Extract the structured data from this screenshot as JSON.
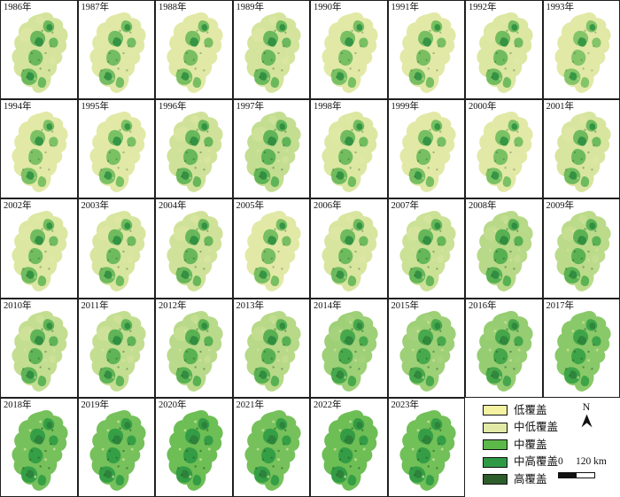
{
  "panels": [
    {
      "year": "1986年",
      "greenness": 0.42
    },
    {
      "year": "1987年",
      "greenness": 0.36
    },
    {
      "year": "1988年",
      "greenness": 0.33
    },
    {
      "year": "1989年",
      "greenness": 0.42
    },
    {
      "year": "1990年",
      "greenness": 0.32
    },
    {
      "year": "1991年",
      "greenness": 0.33
    },
    {
      "year": "1992年",
      "greenness": 0.38
    },
    {
      "year": "1993年",
      "greenness": 0.22
    },
    {
      "year": "1994年",
      "greenness": 0.28
    },
    {
      "year": "1995年",
      "greenness": 0.3
    },
    {
      "year": "1996年",
      "greenness": 0.44
    },
    {
      "year": "1997年",
      "greenness": 0.5
    },
    {
      "year": "1998年",
      "greenness": 0.38
    },
    {
      "year": "1999年",
      "greenness": 0.34
    },
    {
      "year": "2000年",
      "greenness": 0.3
    },
    {
      "year": "2001年",
      "greenness": 0.4
    },
    {
      "year": "2002年",
      "greenness": 0.38
    },
    {
      "year": "2003年",
      "greenness": 0.4
    },
    {
      "year": "2004年",
      "greenness": 0.44
    },
    {
      "year": "2005年",
      "greenness": 0.34
    },
    {
      "year": "2006年",
      "greenness": 0.4
    },
    {
      "year": "2007年",
      "greenness": 0.46
    },
    {
      "year": "2008年",
      "greenness": 0.56
    },
    {
      "year": "2009年",
      "greenness": 0.54
    },
    {
      "year": "2010年",
      "greenness": 0.5
    },
    {
      "year": "2011年",
      "greenness": 0.5
    },
    {
      "year": "2012年",
      "greenness": 0.55
    },
    {
      "year": "2013年",
      "greenness": 0.56
    },
    {
      "year": "2014年",
      "greenness": 0.68
    },
    {
      "year": "2015年",
      "greenness": 0.68
    },
    {
      "year": "2016年",
      "greenness": 0.72
    },
    {
      "year": "2017年",
      "greenness": 0.78
    },
    {
      "year": "2018年",
      "greenness": 0.88
    },
    {
      "year": "2019年",
      "greenness": 0.88
    },
    {
      "year": "2020年",
      "greenness": 0.92
    },
    {
      "year": "2021年",
      "greenness": 0.88
    },
    {
      "year": "2022年",
      "greenness": 0.92
    },
    {
      "year": "2023年",
      "greenness": 0.9
    }
  ],
  "legend": {
    "items": [
      {
        "label": "低覆盖",
        "color": "#f4f1a1"
      },
      {
        "label": "中低覆盖",
        "color": "#e2e9a6"
      },
      {
        "label": "中覆盖",
        "color": "#5db84a"
      },
      {
        "label": "中高覆盖",
        "color": "#2f9a45"
      },
      {
        "label": "高覆盖",
        "color": "#2c5d2b"
      }
    ]
  },
  "north_arrow": {
    "label": "N"
  },
  "scale_bar": {
    "zero_label": "0",
    "distance_label": "120 km"
  }
}
